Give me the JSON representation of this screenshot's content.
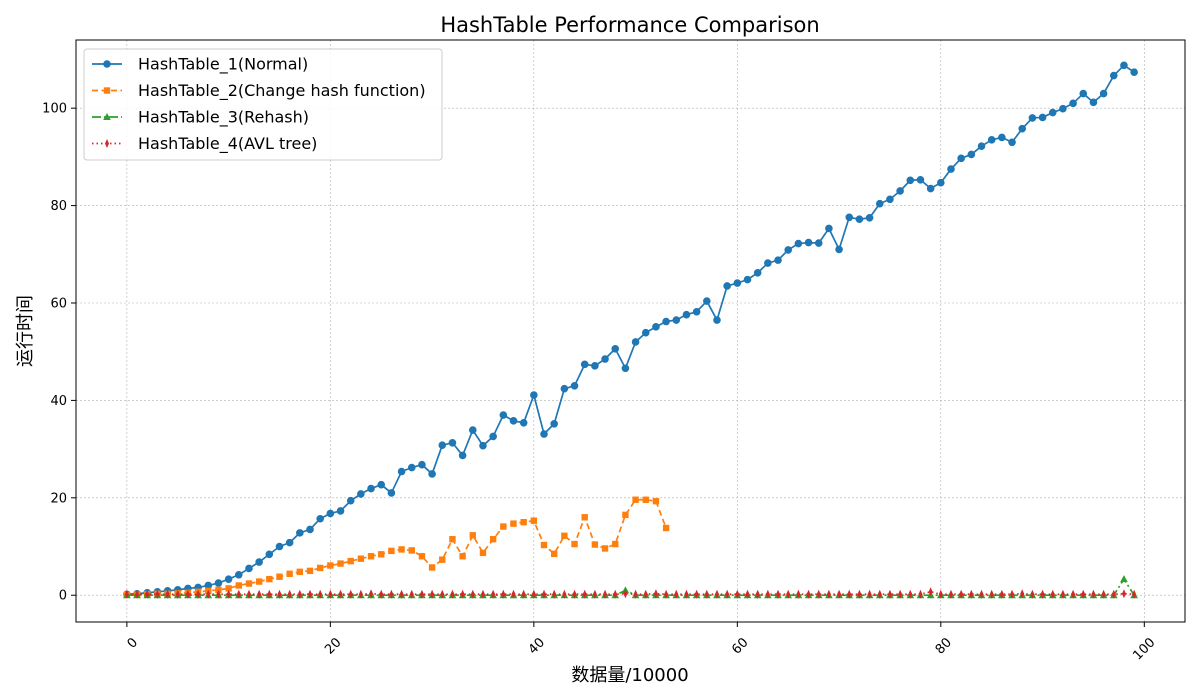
{
  "chart_data": {
    "type": "line",
    "title": "HashTable Performance Comparison",
    "xlabel": "数据量/10000",
    "ylabel": "运行时间",
    "xlim": [
      -5,
      104
    ],
    "ylim": [
      -5.5,
      114
    ],
    "x_ticks": [
      0,
      20,
      40,
      60,
      80,
      100
    ],
    "y_ticks": [
      0,
      20,
      40,
      60,
      80,
      100
    ],
    "x_tick_rotation": 45,
    "grid": true,
    "legend_position": "top-left",
    "series": [
      {
        "name": "HashTable_1(Normal)",
        "color": "#1f77b4",
        "line_style": "solid",
        "marker": "circle",
        "x": [
          0,
          1,
          2,
          3,
          4,
          5,
          6,
          7,
          8,
          9,
          10,
          11,
          12,
          13,
          14,
          15,
          16,
          17,
          18,
          19,
          20,
          21,
          22,
          23,
          24,
          25,
          26,
          27,
          28,
          29,
          30,
          31,
          32,
          33,
          34,
          35,
          36,
          37,
          38,
          39,
          40,
          41,
          42,
          43,
          44,
          45,
          46,
          47,
          48,
          49,
          50,
          51,
          52,
          53,
          54,
          55,
          56,
          57,
          58,
          59,
          60,
          61,
          62,
          63,
          64,
          65,
          66,
          67,
          68,
          69,
          70,
          71,
          72,
          73,
          74,
          75,
          76,
          77,
          78,
          79,
          80,
          81,
          82,
          83,
          84,
          85,
          86,
          87,
          88,
          89,
          90,
          91,
          92,
          93,
          94,
          95,
          96,
          97,
          98,
          99
        ],
        "values": [
          0.2,
          0.3,
          0.5,
          0.7,
          0.9,
          1.1,
          1.4,
          1.6,
          2.0,
          2.5,
          3.3,
          4.2,
          5.5,
          6.8,
          8.4,
          10.0,
          10.8,
          12.8,
          13.5,
          15.7,
          16.8,
          17.3,
          19.4,
          20.8,
          21.9,
          22.7,
          21.0,
          25.4,
          26.2,
          26.8,
          24.9,
          30.8,
          31.3,
          28.7,
          33.9,
          30.7,
          32.6,
          37.0,
          35.8,
          35.4,
          41.1,
          33.1,
          35.2,
          42.4,
          43.0,
          47.4,
          47.1,
          48.5,
          50.6,
          46.6,
          52.0,
          53.9,
          55.1,
          56.2,
          56.5,
          57.6,
          58.2,
          60.4,
          56.5,
          63.5,
          64.1,
          64.8,
          66.2,
          68.2,
          68.8,
          70.9,
          72.2,
          72.4,
          72.3,
          75.3,
          71.0,
          77.6,
          77.2,
          77.5,
          80.4,
          81.3,
          83.0,
          85.2,
          85.3,
          83.5,
          84.7,
          87.5,
          89.7,
          90.5,
          92.2,
          93.5,
          94.0,
          93.0,
          95.8,
          98.0,
          98.1,
          99.1,
          99.9,
          101.0,
          103.0,
          101.2,
          103.0,
          106.7,
          108.8,
          107.4
        ]
      },
      {
        "name": "HashTable_2(Change hash function)",
        "color": "#ff7f0e",
        "line_style": "dashed",
        "marker": "square",
        "x": [
          0,
          1,
          2,
          3,
          4,
          5,
          6,
          7,
          8,
          9,
          10,
          11,
          12,
          13,
          14,
          15,
          16,
          17,
          18,
          19,
          20,
          21,
          22,
          23,
          24,
          25,
          26,
          27,
          28,
          29,
          30,
          31,
          32,
          33,
          34,
          35,
          36,
          37,
          38,
          39,
          40,
          41,
          42,
          43,
          44,
          45,
          46,
          47,
          48,
          49,
          50,
          51,
          52,
          53
        ],
        "values": [
          0.1,
          0.1,
          0.2,
          0.3,
          0.3,
          0.4,
          0.5,
          0.7,
          0.9,
          1.1,
          1.4,
          2.0,
          2.4,
          2.8,
          3.3,
          3.8,
          4.4,
          4.8,
          5.0,
          5.6,
          6.1,
          6.5,
          7.0,
          7.5,
          8.0,
          8.4,
          9.1,
          9.4,
          9.2,
          8.0,
          5.7,
          7.3,
          11.5,
          8.0,
          12.3,
          8.7,
          11.5,
          14.1,
          14.7,
          15.0,
          15.3,
          10.3,
          8.5,
          12.2,
          10.5,
          16.0,
          10.4,
          9.6,
          10.5,
          16.5,
          19.6,
          19.6,
          19.3,
          13.8
        ]
      },
      {
        "name": "HashTable_3(Rehash)",
        "color": "#2ca02c",
        "line_style": "dashdot",
        "marker": "triangle",
        "x": [
          0,
          1,
          2,
          3,
          4,
          5,
          6,
          7,
          8,
          9,
          10,
          11,
          12,
          13,
          14,
          15,
          16,
          17,
          18,
          19,
          20,
          21,
          22,
          23,
          24,
          25,
          26,
          27,
          28,
          29,
          30,
          31,
          32,
          33,
          34,
          35,
          36,
          37,
          38,
          39,
          40,
          41,
          42,
          43,
          44,
          45,
          46,
          47,
          48,
          49,
          50,
          51,
          52,
          53,
          54,
          55,
          56,
          57,
          58,
          59,
          60,
          61,
          62,
          63,
          64,
          65,
          66,
          67,
          68,
          69,
          70,
          71,
          72,
          73,
          74,
          75,
          76,
          77,
          78,
          79,
          80,
          81,
          82,
          83,
          84,
          85,
          86,
          87,
          88,
          89,
          90,
          91,
          92,
          93,
          94,
          95,
          96,
          97,
          98,
          99
        ],
        "values": [
          0,
          0,
          0,
          0,
          0,
          0,
          0,
          0,
          0,
          0,
          0,
          0,
          0,
          0,
          0,
          0,
          0,
          0,
          0,
          0,
          0,
          0,
          0,
          0,
          0,
          0,
          0,
          0,
          0,
          0,
          0,
          0,
          0,
          0,
          0,
          0,
          0,
          0,
          0,
          0,
          0,
          0,
          0,
          0,
          0,
          0,
          0,
          0,
          0,
          1.0,
          0,
          0,
          0,
          0,
          0,
          0,
          0,
          0,
          0,
          0,
          0,
          0,
          0,
          0,
          0,
          0,
          0,
          0,
          0,
          0,
          0,
          0,
          0,
          0,
          0,
          0,
          0,
          0,
          0,
          0,
          0,
          0,
          0,
          0,
          0,
          0,
          0,
          0,
          0,
          0,
          0,
          0,
          0,
          0,
          0,
          0,
          0,
          0,
          3.3,
          0
        ]
      },
      {
        "name": "HashTable_4(AVL tree)",
        "color": "#d62728",
        "line_style": "dotted",
        "marker": "thin_diamond",
        "x": [
          0,
          1,
          2,
          3,
          4,
          5,
          6,
          7,
          8,
          9,
          10,
          11,
          12,
          13,
          14,
          15,
          16,
          17,
          18,
          19,
          20,
          21,
          22,
          23,
          24,
          25,
          26,
          27,
          28,
          29,
          30,
          31,
          32,
          33,
          34,
          35,
          36,
          37,
          38,
          39,
          40,
          41,
          42,
          43,
          44,
          45,
          46,
          47,
          48,
          49,
          50,
          51,
          52,
          53,
          54,
          55,
          56,
          57,
          58,
          59,
          60,
          61,
          62,
          63,
          64,
          65,
          66,
          67,
          68,
          69,
          70,
          71,
          72,
          73,
          74,
          75,
          76,
          77,
          78,
          79,
          80,
          81,
          82,
          83,
          84,
          85,
          86,
          87,
          88,
          89,
          90,
          91,
          92,
          93,
          94,
          95,
          96,
          97,
          98,
          99
        ],
        "values": [
          0.2,
          0.2,
          0.2,
          0.2,
          0.2,
          0.2,
          0.2,
          0.2,
          0.2,
          0.2,
          0.2,
          0.2,
          0.2,
          0.2,
          0.2,
          0.2,
          0.2,
          0.2,
          0.2,
          0.2,
          0.2,
          0.2,
          0.2,
          0.2,
          0.3,
          0.2,
          0.2,
          0.2,
          0.2,
          0.2,
          0.2,
          0.2,
          0.2,
          0.2,
          0.2,
          0.2,
          0.2,
          0.2,
          0.2,
          0.2,
          0.2,
          0.2,
          0.2,
          0.2,
          0.2,
          0.2,
          0.2,
          0.2,
          0.2,
          0.3,
          0.2,
          0.2,
          0.3,
          0.2,
          0.2,
          0.2,
          0.2,
          0.2,
          0.2,
          0.2,
          0.2,
          0.2,
          0.2,
          0.2,
          0.2,
          0.2,
          0.2,
          0.2,
          0.2,
          0.2,
          0.2,
          0.2,
          0.2,
          0.2,
          0.2,
          0.2,
          0.2,
          0.2,
          0.2,
          0.7,
          0.2,
          0.2,
          0.2,
          0.2,
          0.2,
          0.2,
          0.2,
          0.2,
          0.3,
          0.2,
          0.2,
          0.2,
          0.2,
          0.2,
          0.2,
          0.2,
          0.2,
          0.2,
          0.3,
          0.2
        ]
      }
    ]
  }
}
